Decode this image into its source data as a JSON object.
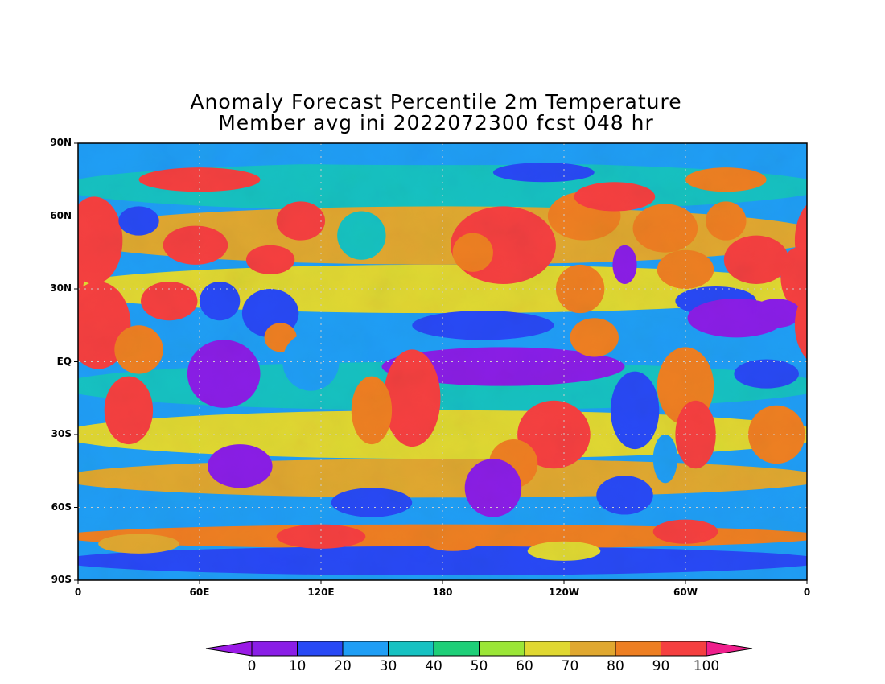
{
  "title": {
    "line1": "Anomaly Forecast Percentile 2m Temperature",
    "line2": "Member avg ini 2022072300 fcst 048 hr"
  },
  "map": {
    "type": "global-filled-contour",
    "projection": "latlon",
    "variable": "percentile",
    "y_ticks": [
      "90N",
      "60N",
      "30N",
      "EQ",
      "30S",
      "60S",
      "90S"
    ],
    "x_ticks": [
      "0",
      "60E",
      "120E",
      "180",
      "120W",
      "60W",
      "0"
    ],
    "grid": "dotted"
  },
  "colorbar": {
    "levels": [
      "0",
      "10",
      "20",
      "30",
      "40",
      "50",
      "60",
      "70",
      "80",
      "90",
      "100"
    ],
    "colors": [
      "#9a1ae6",
      "#8a1ee6",
      "#2849f5",
      "#1f9ef5",
      "#16c2c2",
      "#1ecf78",
      "#9be637",
      "#e0d832",
      "#e0a830",
      "#ee7f22",
      "#f54040",
      "#ef1f8c"
    ]
  },
  "chart_data": {
    "type": "heatmap",
    "title": "Anomaly Forecast Percentile 2m Temperature",
    "subtitle": "Member avg ini 2022072300 fcst 048 hr",
    "x_range": [
      0,
      360
    ],
    "y_range": [
      -90,
      90
    ],
    "value_range": [
      0,
      100
    ],
    "levels": [
      0,
      10,
      20,
      30,
      40,
      50,
      60,
      70,
      80,
      90,
      100
    ]
  }
}
